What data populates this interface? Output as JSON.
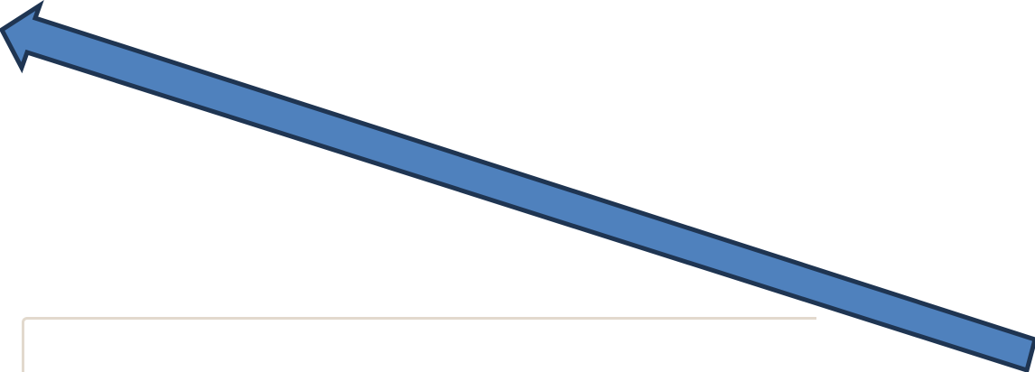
{
  "shapes": {
    "arrow": {
      "kind": "block-arrow",
      "direction": "up-left",
      "fill_color": "#4f81bd",
      "stroke_color": "#1f3552"
    },
    "panel": {
      "kind": "partial-rounded-frame",
      "border_color": "#e2d9cd"
    }
  }
}
